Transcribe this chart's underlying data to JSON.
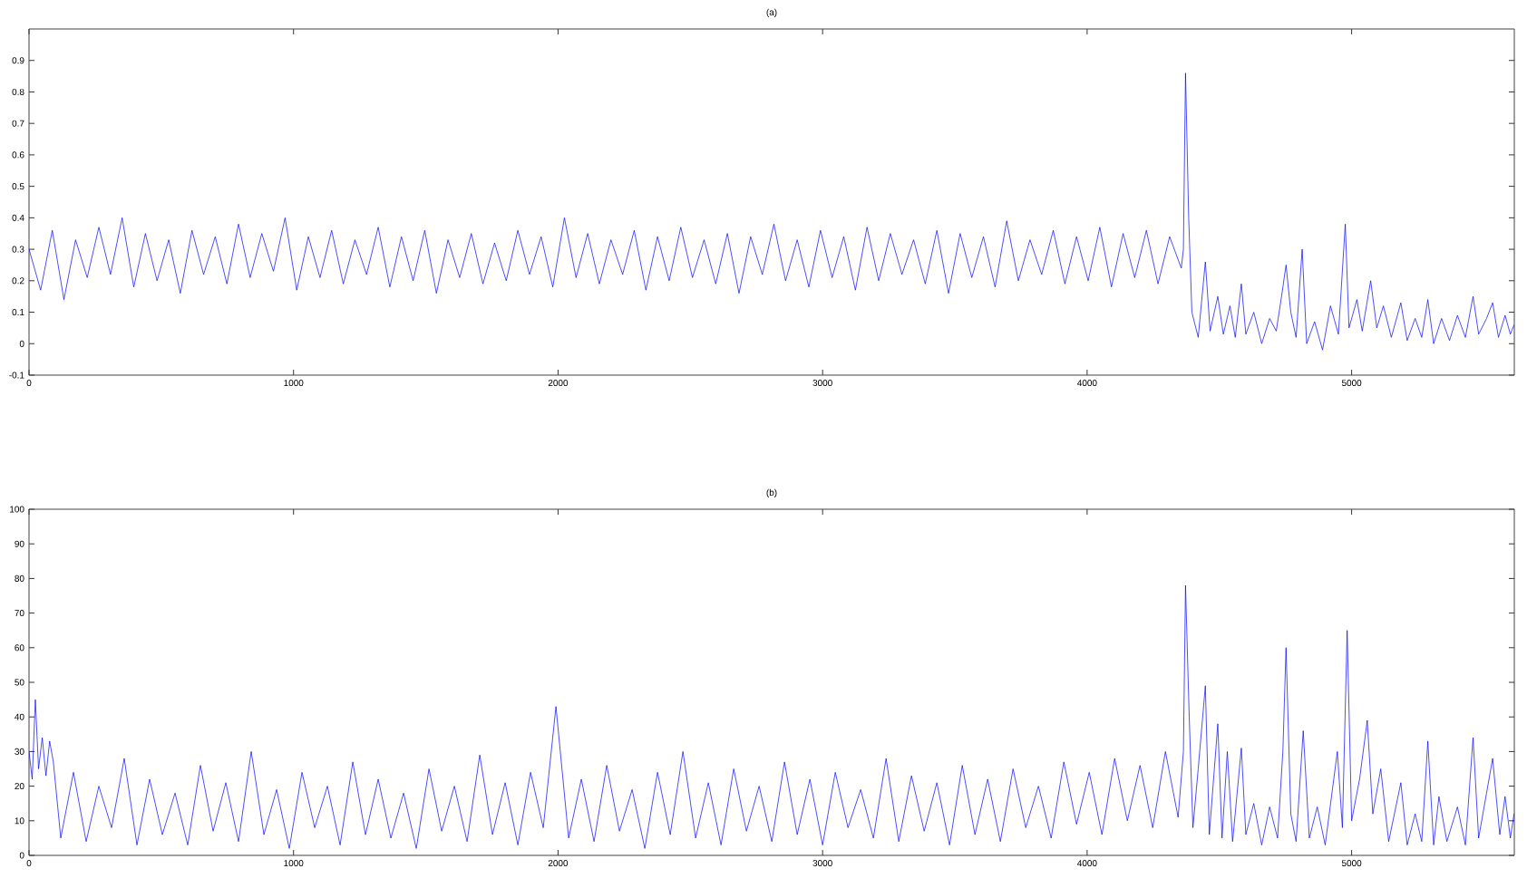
{
  "chart_data": [
    {
      "type": "line",
      "title": "(a)",
      "color": "#0000ff",
      "xlim": [
        0,
        5615
      ],
      "xticks": [
        0,
        1000,
        2000,
        3000,
        4000,
        5000
      ],
      "ylim": [
        -0.1,
        1.0
      ],
      "yticks": [
        -0.1,
        0,
        0.1,
        0.2,
        0.3,
        0.4,
        0.5,
        0.6,
        0.7,
        0.8,
        0.9
      ],
      "x": [
        0,
        44,
        88,
        132,
        176,
        220,
        264,
        308,
        352,
        396,
        440,
        484,
        528,
        572,
        616,
        660,
        704,
        748,
        792,
        836,
        880,
        924,
        968,
        1012,
        1056,
        1100,
        1144,
        1188,
        1232,
        1276,
        1320,
        1364,
        1408,
        1452,
        1496,
        1540,
        1584,
        1628,
        1672,
        1716,
        1760,
        1804,
        1848,
        1892,
        1936,
        1980,
        2024,
        2068,
        2112,
        2156,
        2200,
        2244,
        2288,
        2332,
        2376,
        2420,
        2464,
        2508,
        2552,
        2596,
        2640,
        2684,
        2728,
        2772,
        2816,
        2860,
        2904,
        2948,
        2992,
        3036,
        3080,
        3124,
        3168,
        3212,
        3256,
        3300,
        3344,
        3388,
        3432,
        3476,
        3520,
        3564,
        3608,
        3652,
        3696,
        3740,
        3784,
        3828,
        3872,
        3916,
        3960,
        4004,
        4048,
        4092,
        4136,
        4180,
        4224,
        4268,
        4312,
        4356,
        4364,
        4372,
        4384,
        4396,
        4420,
        4447,
        4465,
        4494,
        4515,
        4540,
        4560,
        4583,
        4600,
        4630,
        4660,
        4690,
        4715,
        4735,
        4752,
        4770,
        4790,
        4813,
        4830,
        4860,
        4890,
        4920,
        4950,
        4976,
        4990,
        5020,
        5040,
        5072,
        5095,
        5120,
        5150,
        5186,
        5210,
        5240,
        5265,
        5288,
        5310,
        5340,
        5370,
        5400,
        5430,
        5459,
        5480,
        5510,
        5533,
        5555,
        5580,
        5600,
        5614
      ],
      "values": [
        0.3,
        0.17,
        0.36,
        0.14,
        0.33,
        0.21,
        0.37,
        0.22,
        0.4,
        0.18,
        0.35,
        0.2,
        0.33,
        0.16,
        0.36,
        0.22,
        0.34,
        0.19,
        0.38,
        0.21,
        0.35,
        0.23,
        0.4,
        0.17,
        0.34,
        0.21,
        0.36,
        0.19,
        0.33,
        0.22,
        0.37,
        0.18,
        0.34,
        0.2,
        0.36,
        0.16,
        0.33,
        0.21,
        0.35,
        0.19,
        0.32,
        0.2,
        0.36,
        0.22,
        0.34,
        0.18,
        0.4,
        0.21,
        0.35,
        0.19,
        0.33,
        0.22,
        0.36,
        0.17,
        0.34,
        0.2,
        0.37,
        0.21,
        0.33,
        0.19,
        0.35,
        0.16,
        0.34,
        0.22,
        0.38,
        0.2,
        0.33,
        0.18,
        0.36,
        0.21,
        0.34,
        0.17,
        0.37,
        0.2,
        0.35,
        0.22,
        0.33,
        0.19,
        0.36,
        0.16,
        0.35,
        0.21,
        0.34,
        0.18,
        0.39,
        0.2,
        0.33,
        0.22,
        0.36,
        0.19,
        0.34,
        0.2,
        0.37,
        0.18,
        0.35,
        0.21,
        0.36,
        0.19,
        0.34,
        0.24,
        0.3,
        0.86,
        0.4,
        0.1,
        0.02,
        0.26,
        0.04,
        0.15,
        0.03,
        0.12,
        0.02,
        0.19,
        0.03,
        0.1,
        0.0,
        0.08,
        0.04,
        0.15,
        0.25,
        0.1,
        0.02,
        0.3,
        0.0,
        0.07,
        -0.02,
        0.12,
        0.03,
        0.38,
        0.05,
        0.14,
        0.04,
        0.2,
        0.05,
        0.12,
        0.02,
        0.13,
        0.01,
        0.08,
        0.02,
        0.14,
        0.0,
        0.08,
        0.01,
        0.09,
        0.02,
        0.15,
        0.03,
        0.08,
        0.13,
        0.02,
        0.09,
        0.03,
        0.06
      ]
    },
    {
      "type": "line",
      "title": "(b)",
      "color": "#0000ff",
      "xlim": [
        0,
        5615
      ],
      "xticks": [
        0,
        1000,
        2000,
        3000,
        4000,
        5000
      ],
      "ylim": [
        0,
        100
      ],
      "yticks": [
        0,
        10,
        20,
        30,
        40,
        50,
        60,
        70,
        80,
        90,
        100
      ],
      "x": [
        0,
        12,
        24,
        36,
        50,
        64,
        78,
        92,
        120,
        168,
        216,
        264,
        312,
        360,
        408,
        456,
        504,
        552,
        600,
        648,
        696,
        744,
        792,
        840,
        888,
        936,
        984,
        1032,
        1080,
        1128,
        1176,
        1224,
        1272,
        1320,
        1368,
        1416,
        1464,
        1512,
        1560,
        1608,
        1656,
        1704,
        1752,
        1800,
        1848,
        1896,
        1944,
        1992,
        2040,
        2088,
        2136,
        2184,
        2232,
        2280,
        2328,
        2376,
        2424,
        2472,
        2520,
        2568,
        2616,
        2664,
        2712,
        2760,
        2808,
        2856,
        2904,
        2952,
        3000,
        3048,
        3096,
        3144,
        3192,
        3240,
        3288,
        3336,
        3384,
        3432,
        3480,
        3528,
        3576,
        3624,
        3672,
        3720,
        3768,
        3816,
        3864,
        3912,
        3960,
        4008,
        4056,
        4104,
        4152,
        4200,
        4248,
        4296,
        4344,
        4364,
        4372,
        4386,
        4400,
        4420,
        4447,
        4462,
        4494,
        4510,
        4530,
        4550,
        4583,
        4600,
        4630,
        4660,
        4690,
        4720,
        4740,
        4752,
        4770,
        4790,
        4817,
        4840,
        4870,
        4900,
        4946,
        4965,
        4983,
        5000,
        5030,
        5059,
        5080,
        5110,
        5140,
        5186,
        5210,
        5240,
        5265,
        5288,
        5310,
        5330,
        5360,
        5400,
        5430,
        5459,
        5480,
        5510,
        5533,
        5560,
        5580,
        5600,
        5614
      ],
      "values": [
        30,
        22,
        45,
        25,
        34,
        23,
        33,
        27,
        5,
        24,
        4,
        20,
        8,
        28,
        3,
        22,
        6,
        18,
        3,
        26,
        7,
        21,
        4,
        30,
        6,
        19,
        2,
        24,
        8,
        20,
        3,
        27,
        6,
        22,
        5,
        18,
        2,
        25,
        7,
        20,
        4,
        29,
        6,
        21,
        3,
        24,
        8,
        43,
        5,
        22,
        4,
        26,
        7,
        19,
        2,
        24,
        6,
        30,
        5,
        21,
        3,
        25,
        7,
        20,
        4,
        27,
        6,
        22,
        3,
        24,
        8,
        19,
        5,
        28,
        4,
        23,
        7,
        21,
        3,
        26,
        6,
        22,
        4,
        25,
        8,
        20,
        5,
        27,
        9,
        24,
        6,
        28,
        10,
        26,
        8,
        30,
        11,
        30,
        78,
        40,
        8,
        25,
        49,
        6,
        38,
        5,
        30,
        4,
        31,
        6,
        15,
        3,
        14,
        5,
        30,
        60,
        12,
        4,
        36,
        5,
        14,
        3,
        30,
        8,
        65,
        10,
        22,
        39,
        12,
        25,
        4,
        21,
        3,
        12,
        4,
        33,
        3,
        17,
        4,
        14,
        3,
        34,
        5,
        18,
        28,
        6,
        17,
        5,
        12
      ]
    }
  ]
}
